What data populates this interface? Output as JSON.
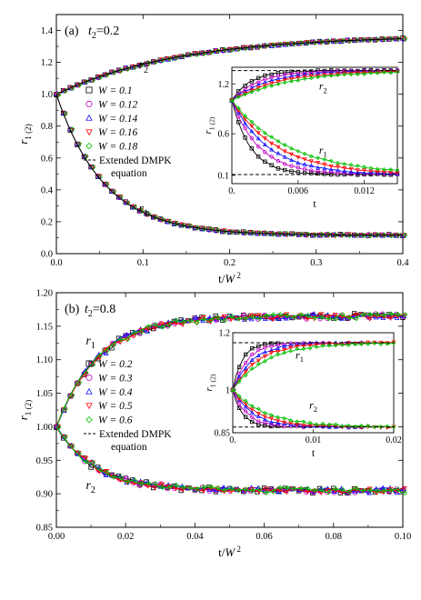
{
  "chart_data": [
    {
      "type": "scatter",
      "panel_label": "(a)",
      "title": "t2=0.2",
      "title_parts": {
        "base": "t",
        "sub": "2",
        "rest": "=0.2"
      },
      "xlabel": "t/W 2",
      "ylabel": "r1 (2)",
      "xlim": [
        0,
        0.4
      ],
      "ylim": [
        0,
        1.5
      ],
      "xticks": [
        0,
        0.1,
        0.2,
        0.3,
        0.4
      ],
      "xtick_labels": [
        "0.0",
        "0.1",
        "0.2",
        "0.3",
        "0.4"
      ],
      "yticks": [
        0,
        0.2,
        0.4,
        0.6,
        0.8,
        1.0,
        1.2,
        1.4
      ],
      "ytick_labels": [
        "0.0",
        "0.2",
        "0.4",
        "0.6",
        "0.8",
        "1.0",
        "1.2",
        "1.4"
      ],
      "curve_labels": [
        {
          "text": "r2",
          "base": "r",
          "sub": "2",
          "x": 0.095,
          "y": 1.16
        },
        {
          "text": "r1",
          "base": "r",
          "sub": "1",
          "x": 0.095,
          "y": 0.26
        }
      ],
      "legend": {
        "placement": "center-left",
        "entries": [
          "W = 0.1",
          "W = 0.12",
          "W = 0.14",
          "W = 0.16",
          "W = 0.18"
        ],
        "line_label": [
          "Extended DMPK",
          "equation"
        ]
      },
      "series": [
        {
          "name": "W = 0.1",
          "marker": "square",
          "color": "#000000"
        },
        {
          "name": "W = 0.12",
          "marker": "circle",
          "color": "#c000c0"
        },
        {
          "name": "W = 0.14",
          "marker": "triangle-up",
          "color": "#1010ff"
        },
        {
          "name": "W = 0.16",
          "marker": "triangle-down",
          "color": "#ff0000"
        },
        {
          "name": "W = 0.18",
          "marker": "diamond",
          "color": "#00c000"
        }
      ],
      "main_curves": {
        "x_step": 0.008,
        "r2": {
          "y0": 1.0,
          "y_inf": 1.37,
          "tau": 0.14
        },
        "r1": {
          "y0": 1.0,
          "y_inf": 0.115,
          "tau": 0.055
        },
        "marker_every": 1
      },
      "inset": {
        "xlim": [
          0,
          0.015
        ],
        "ylim": [
          0,
          1.4
        ],
        "xticks": [
          0,
          0.006,
          0.012
        ],
        "xtick_labels": [
          "0.",
          "0.006",
          "0.012"
        ],
        "yticks": [
          0.1,
          0.6,
          1.2
        ],
        "ytick_labels": [
          "0.1",
          "0.6",
          "1.2"
        ],
        "xlabel": "t",
        "ylabel": "r1 (2)",
        "dashed_levels": [
          1.36,
          0.11
        ],
        "curve_labels": [
          {
            "text": "r2",
            "base": "r",
            "sub": "2",
            "x": 0.0079,
            "y": 1.13
          },
          {
            "text": "r1",
            "base": "r",
            "sub": "1",
            "x": 0.0079,
            "y": 0.36
          }
        ],
        "start": 1.0,
        "r2_inf": 1.36,
        "r1_inf": 0.11,
        "taus": [
          0.0017,
          0.0025,
          0.0033,
          0.0042,
          0.0052
        ],
        "x_step": 0.0003
      }
    },
    {
      "type": "scatter",
      "panel_label": "(b)",
      "title": "t2=0.8",
      "title_parts": {
        "base": "t",
        "sub": "2",
        "rest": "=0.8"
      },
      "xlabel": "t/W 2",
      "ylabel": "r1 (2)",
      "xlim": [
        0,
        0.1
      ],
      "ylim": [
        0.85,
        1.2
      ],
      "xticks": [
        0,
        0.02,
        0.04,
        0.06,
        0.08,
        0.1
      ],
      "xtick_labels": [
        "0.00",
        "0.02",
        "0.04",
        "0.06",
        "0.08",
        "0.10"
      ],
      "yticks": [
        0.85,
        0.9,
        0.95,
        1.0,
        1.05,
        1.1,
        1.15,
        1.2
      ],
      "ytick_labels": [
        "0.85",
        "0.90",
        "0.95",
        "1.00",
        "1.05",
        "1.10",
        "1.15",
        "1.20"
      ],
      "curve_labels": [
        {
          "text": "r1",
          "base": "r",
          "sub": "1",
          "x": 0.0085,
          "y": 1.123
        },
        {
          "text": "r2",
          "base": "r",
          "sub": "2",
          "x": 0.0085,
          "y": 0.907
        }
      ],
      "legend": {
        "placement": "center-left",
        "entries": [
          "W = 0.2",
          "W = 0.3",
          "W = 0.4",
          "W = 0.5",
          "W = 0.6"
        ],
        "line_label": [
          "Extended DMPK",
          "equation"
        ]
      },
      "series": [
        {
          "name": "W = 0.2",
          "marker": "square",
          "color": "#000000"
        },
        {
          "name": "W = 0.3",
          "marker": "circle",
          "color": "#c000c0"
        },
        {
          "name": "W = 0.4",
          "marker": "triangle-up",
          "color": "#1010ff"
        },
        {
          "name": "W = 0.5",
          "marker": "triangle-down",
          "color": "#ff0000"
        },
        {
          "name": "W = 0.6",
          "marker": "diamond",
          "color": "#00c000"
        }
      ],
      "main_curves": {
        "x_step": 0.002,
        "r1": {
          "y0": 1.0,
          "y_inf": 1.165,
          "tau": 0.012
        },
        "r2": {
          "y0": 1.0,
          "y_inf": 0.905,
          "tau": 0.011
        },
        "noise": 0.004,
        "marker_every": 1
      },
      "inset": {
        "xlim": [
          0,
          0.02
        ],
        "ylim": [
          0.85,
          1.2
        ],
        "xticks": [
          0,
          0.01,
          0.02
        ],
        "xtick_labels": [
          "0.",
          "0.01",
          "0.02"
        ],
        "yticks": [
          0.85,
          1.0,
          1.2
        ],
        "ytick_labels": [
          "0.85",
          "1",
          "1.2"
        ],
        "xlabel": "t",
        "ylabel": "r1 (2)",
        "dashed_levels": [
          1.165,
          0.87
        ],
        "curve_labels": [
          {
            "text": "r1",
            "base": "r",
            "sub": "1",
            "x": 0.0078,
            "y": 1.11
          },
          {
            "text": "r2",
            "base": "r",
            "sub": "2",
            "x": 0.0095,
            "y": 0.935
          }
        ],
        "start": 1.0,
        "r1_inf": 1.165,
        "r2_inf": 0.87,
        "taus": [
          0.0012,
          0.0018,
          0.0025,
          0.0032,
          0.0042
        ],
        "x_step": 0.0004,
        "x_end": [
          0.006,
          0.012,
          0.016,
          0.02,
          0.02
        ]
      }
    }
  ]
}
